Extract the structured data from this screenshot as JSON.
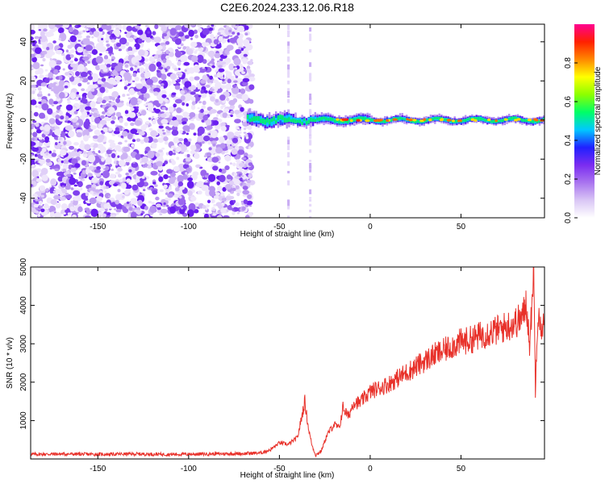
{
  "title": "C2E6.2024.233.12.06.R18",
  "colors": {
    "snr_line": "#e8312a",
    "frame": "#000000",
    "colorbar_stops": [
      "#ffffff",
      "#d9c6f5",
      "#a974ef",
      "#7a2cf0",
      "#2020ff",
      "#00c8ff",
      "#00ff66",
      "#8cff00",
      "#ffff00",
      "#ff8800",
      "#ff2000",
      "#ff0090"
    ]
  },
  "chart_data": [
    {
      "type": "heatmap",
      "xlabel": "Height of straight line (km)",
      "ylabel": "Frequency (Hz)",
      "xlim": [
        -187,
        96
      ],
      "ylim": [
        -50,
        49
      ],
      "xticks": [
        -150,
        -100,
        -50,
        0,
        50
      ],
      "yticks": [
        -40,
        -20,
        0,
        20,
        40
      ],
      "grid": false,
      "colorbar": {
        "label": "Normalized spectral amplitude",
        "range": [
          0,
          1
        ],
        "ticks": [
          0.0,
          0.2,
          0.4,
          0.6,
          0.8
        ]
      },
      "noise_region_x": [
        -187,
        -65
      ],
      "signal_band": {
        "x": [
          -68,
          96
        ],
        "center_freq": 0,
        "peak_x": [
          -15,
          0
        ]
      }
    },
    {
      "type": "line",
      "xlabel": "Height of straight line (km)",
      "ylabel": "SNR (10 * v/v)",
      "xlim": [
        -187,
        96
      ],
      "ylim": [
        0,
        5000
      ],
      "xticks": [
        -150,
        -100,
        -50,
        0,
        50
      ],
      "yticks": [
        1000,
        2000,
        3000,
        4000,
        5000
      ],
      "grid": false,
      "series": [
        {
          "x": [
            -187,
            -170,
            -150,
            -130,
            -110,
            -90,
            -70,
            -60,
            -55,
            -50,
            -45,
            -40,
            -36,
            -34,
            -32,
            -30,
            -27,
            -24,
            -20,
            -17,
            -15,
            -12,
            -9,
            -6,
            -3,
            0,
            5,
            10,
            15,
            20,
            25,
            30,
            35,
            40,
            45,
            50,
            55,
            60,
            65,
            70,
            75,
            80,
            84,
            86,
            88,
            90,
            91,
            92,
            93,
            94,
            95,
            96
          ],
          "values": [
            120,
            130,
            120,
            130,
            120,
            130,
            140,
            160,
            240,
            420,
            380,
            560,
            1500,
            800,
            350,
            100,
            200,
            600,
            900,
            800,
            1350,
            1100,
            1500,
            1450,
            1600,
            1750,
            1850,
            1950,
            2100,
            2250,
            2400,
            2550,
            2700,
            2800,
            2950,
            3050,
            3100,
            3200,
            3300,
            3350,
            3450,
            3550,
            3700,
            4100,
            2900,
            5100,
            1800,
            3500,
            4000,
            3200,
            3600,
            3300
          ]
        }
      ]
    }
  ]
}
